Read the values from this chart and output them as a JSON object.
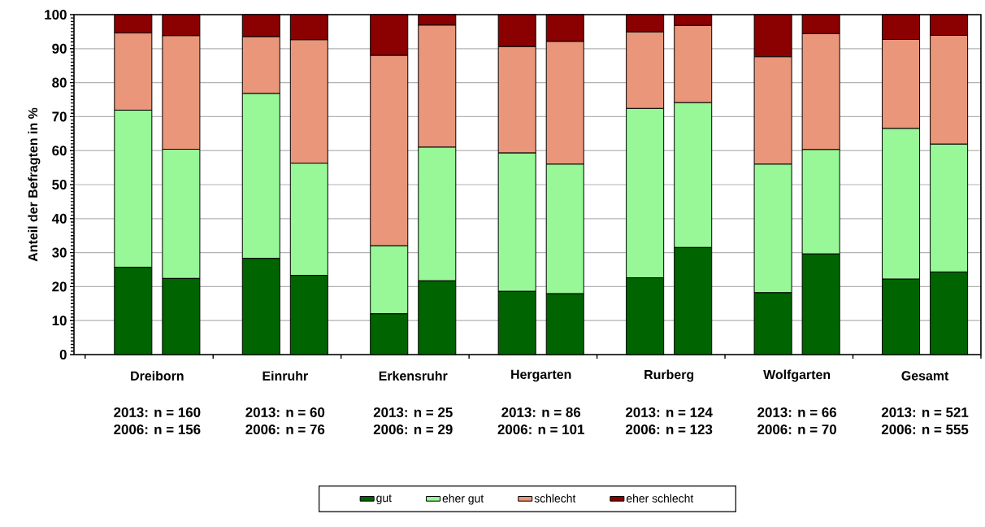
{
  "chart_data": {
    "type": "bar",
    "stacked": true,
    "ylabel": "Anteil der Befragten in %",
    "categories": [
      null,
      null,
      null,
      null,
      null,
      null,
      null,
      null,
      null,
      null,
      null,
      null,
      null,
      null
    ],
    "ylim": [
      0,
      100
    ],
    "yticks": [
      0,
      10,
      20,
      30,
      40,
      50,
      60,
      70,
      80,
      90,
      100
    ],
    "grid": "y",
    "legend": "bottom",
    "series": [
      {
        "name": "gut",
        "color": "#006400",
        "values": [
          25.7,
          22.4,
          28.3,
          23.3,
          12,
          21.7,
          18.6,
          17.9,
          22.6,
          31.5,
          18.2,
          29.6,
          22.2,
          24.3
        ]
      },
      {
        "name": "eher gut",
        "color": "#98f898",
        "values": [
          46.2,
          38.0,
          48.5,
          33.0,
          20,
          39.3,
          40.7,
          38.1,
          49.8,
          42.6,
          37.8,
          30.7,
          44.3,
          37.6
        ]
      },
      {
        "name": "schlecht",
        "color": "#e9967a",
        "values": [
          22.7,
          33.4,
          16.7,
          36.3,
          56,
          35.9,
          31.3,
          36.1,
          22.5,
          22.7,
          31.6,
          34.1,
          26.2,
          32.0
        ]
      },
      {
        "name": "eher schlecht",
        "color": "#8b0000",
        "values": [
          5.4,
          6.2,
          6.5,
          7.4,
          12,
          3.1,
          9.4,
          7.9,
          5.1,
          3.2,
          12.4,
          5.6,
          7.3,
          6.1
        ]
      }
    ],
    "annotations": [
      "Dreiborn",
      "2013: n = 160",
      "2006: n = 156",
      "Einruhr",
      "2013: n = 60",
      "2006: n = 76",
      "Erkensruhr",
      "2013: n = 25",
      "2006: n = 29",
      "Hergarten",
      "2013: n = 86",
      "2006: n = 101",
      "Rurberg",
      "2013: n = 124",
      "2006: n = 123",
      "Wolfgarten",
      "2013: n = 66",
      "2006: n = 70",
      "Gesamt",
      "2013: n = 521",
      "2006: n = 555"
    ]
  }
}
